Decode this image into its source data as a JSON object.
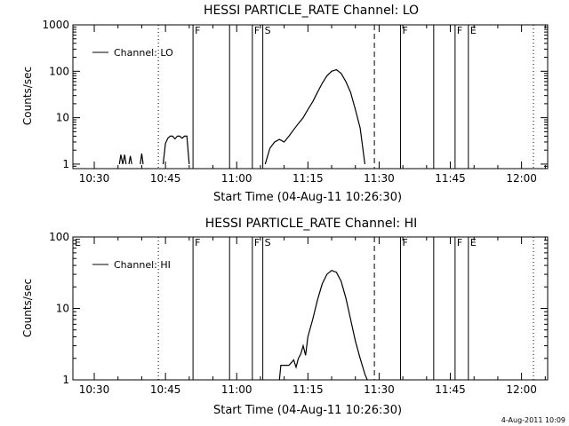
{
  "footer_timestamp": "4-Aug-2011 10:09",
  "colors": {
    "line": "#000000",
    "background": "#ffffff"
  },
  "chart_data": [
    {
      "type": "line",
      "title": "HESSI PARTICLE_RATE Channel: LO",
      "xlabel": "Start Time (04-Aug-11 10:26:30)",
      "ylabel": "Counts/sec",
      "y_scale": "log",
      "xlim_minutes_after_1030": [
        -4.5,
        95.5
      ],
      "ylim": [
        0.8,
        1000
      ],
      "x_tick_labels": [
        "10:30",
        "10:45",
        "11:00",
        "11:15",
        "11:30",
        "11:45",
        "12:00"
      ],
      "y_tick_labels": [
        "1",
        "10",
        "100",
        "1000"
      ],
      "legend": {
        "label": "Channel: LO",
        "position": "top-left"
      },
      "markers": [
        {
          "label": "",
          "minutes": 13.5,
          "style": "dotted"
        },
        {
          "label": "F",
          "minutes": 20.8,
          "style": "solid"
        },
        {
          "label": "",
          "minutes": 28.5,
          "style": "solid"
        },
        {
          "label": "F",
          "minutes": 33.3,
          "style": "solid"
        },
        {
          "label": "S",
          "minutes": 35.5,
          "style": "solid"
        },
        {
          "label": "",
          "minutes": 59.0,
          "style": "dashed"
        },
        {
          "label": "F",
          "minutes": 64.5,
          "style": "solid"
        },
        {
          "label": "",
          "minutes": 71.5,
          "style": "solid"
        },
        {
          "label": "F",
          "minutes": 76.0,
          "style": "solid"
        },
        {
          "label": "E",
          "minutes": 78.8,
          "style": "solid"
        },
        {
          "label": "",
          "minutes": 92.5,
          "style": "dotted"
        }
      ],
      "segments": [
        {
          "x": [
            5.3,
            5.6,
            6.0,
            6.4,
            6.7
          ],
          "y": [
            1.0,
            1.6,
            1.0,
            1.6,
            1.0
          ]
        },
        {
          "x": [
            7.3,
            7.6,
            7.9
          ],
          "y": [
            1.0,
            1.5,
            1.0
          ]
        },
        {
          "x": [
            9.7,
            10.0,
            10.3
          ],
          "y": [
            1.0,
            1.7,
            1.0
          ]
        },
        {
          "x": [
            14.5,
            15.0,
            15.5,
            16.0,
            16.5,
            17.0,
            17.5,
            18.0,
            18.5,
            19.0,
            19.5,
            20.0
          ],
          "y": [
            1.0,
            2.8,
            3.6,
            4.0,
            4.0,
            3.5,
            4.0,
            4.0,
            3.6,
            4.0,
            4.0,
            1.0
          ]
        },
        {
          "x": [
            36.0,
            37.0,
            38.0,
            39.0,
            40.0,
            41.0,
            42.0,
            43.0,
            44.0,
            45.0,
            46.0,
            47.0,
            48.0,
            49.0,
            50.0,
            51.0,
            52.0,
            53.0,
            54.0,
            55.0,
            56.0,
            57.0
          ],
          "y": [
            1.0,
            2.2,
            3.0,
            3.4,
            3.0,
            4.0,
            5.5,
            7.5,
            10.0,
            15.0,
            22.0,
            35.0,
            55.0,
            80.0,
            100.0,
            108.0,
            90.0,
            60.0,
            35.0,
            15.0,
            6.0,
            1.0
          ]
        }
      ]
    },
    {
      "type": "line",
      "title": "HESSI PARTICLE_RATE Channel: HI",
      "xlabel": "Start Time (04-Aug-11 10:26:30)",
      "ylabel": "Counts/sec",
      "y_scale": "log",
      "xlim_minutes_after_1030": [
        -4.5,
        95.5
      ],
      "ylim": [
        1,
        100
      ],
      "x_tick_labels": [
        "10:30",
        "10:45",
        "11:00",
        "11:15",
        "11:30",
        "11:45",
        "12:00"
      ],
      "y_tick_labels": [
        "1",
        "10",
        "100"
      ],
      "legend": {
        "label": "Channel: HI",
        "position": "top-left"
      },
      "markers": [
        {
          "label": "E",
          "minutes": -4.5,
          "style": "none"
        },
        {
          "label": "",
          "minutes": 13.5,
          "style": "dotted"
        },
        {
          "label": "F",
          "minutes": 20.8,
          "style": "solid"
        },
        {
          "label": "",
          "minutes": 28.5,
          "style": "solid"
        },
        {
          "label": "F",
          "minutes": 33.3,
          "style": "solid"
        },
        {
          "label": "S",
          "minutes": 35.5,
          "style": "solid"
        },
        {
          "label": "",
          "minutes": 59.0,
          "style": "dashed"
        },
        {
          "label": "F",
          "minutes": 64.5,
          "style": "solid"
        },
        {
          "label": "",
          "minutes": 71.5,
          "style": "solid"
        },
        {
          "label": "F",
          "minutes": 76.0,
          "style": "solid"
        },
        {
          "label": "E",
          "minutes": 78.8,
          "style": "solid"
        },
        {
          "label": "",
          "minutes": 92.5,
          "style": "dotted"
        }
      ],
      "segments": [
        {
          "x": [
            39.0,
            39.3,
            40.0,
            41.0,
            42.0,
            42.5,
            43.0,
            43.5,
            44.0,
            44.5,
            45.0,
            46.0,
            47.0,
            48.0,
            49.0,
            50.0,
            51.0,
            52.0,
            53.0,
            54.0,
            55.0,
            56.0,
            57.0,
            57.5
          ],
          "y": [
            1.0,
            1.6,
            1.6,
            1.6,
            1.9,
            1.5,
            2.0,
            2.3,
            3.0,
            2.2,
            4.0,
            7.0,
            13.0,
            22.0,
            30.0,
            34.0,
            32.0,
            24.0,
            14.0,
            7.0,
            3.5,
            2.0,
            1.2,
            1.0
          ]
        }
      ]
    }
  ]
}
